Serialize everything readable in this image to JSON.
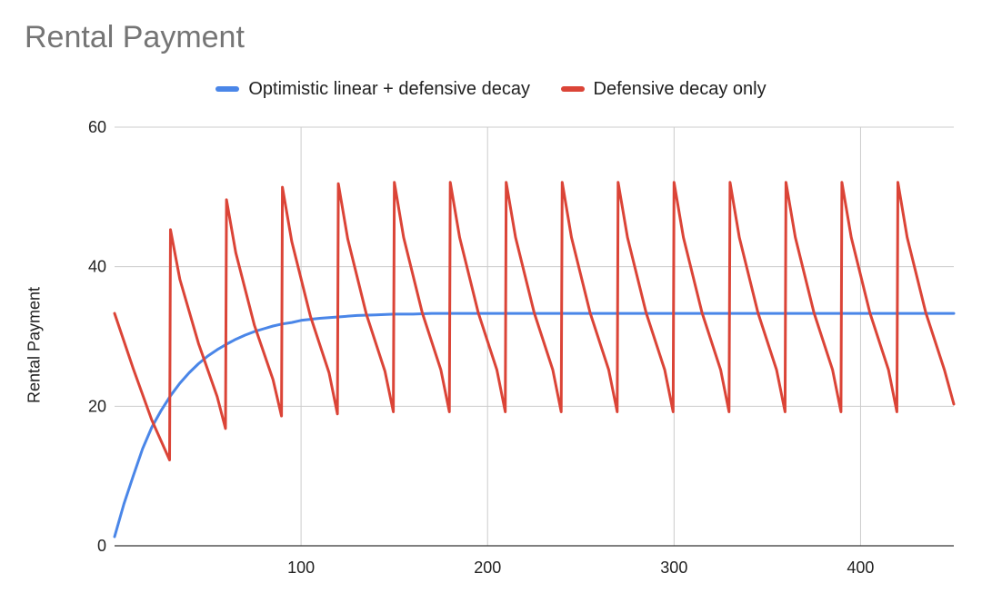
{
  "chart_data": {
    "type": "line",
    "title": "Rental Payment",
    "ylabel": "Rental Payment",
    "xlabel": "",
    "xlim": [
      0,
      450
    ],
    "ylim": [
      0,
      60
    ],
    "x_ticks": [
      100,
      200,
      300,
      400
    ],
    "y_ticks": [
      0,
      20,
      40,
      60
    ],
    "grid": true,
    "legend_position": "top",
    "series": [
      {
        "name": "Optimistic linear + defensive decay",
        "color": "#4a86e8",
        "x": [
          0,
          5,
          10,
          15,
          20,
          25,
          30,
          35,
          40,
          45,
          50,
          55,
          60,
          65,
          70,
          75,
          80,
          85,
          90,
          95,
          100,
          110,
          120,
          130,
          140,
          150,
          160,
          170,
          180,
          190,
          200,
          220,
          240,
          260,
          280,
          300,
          320,
          340,
          360,
          380,
          400,
          420,
          440,
          450
        ],
        "y": [
          1.3,
          6.0,
          10.0,
          13.9,
          17.0,
          19.4,
          21.5,
          23.3,
          24.8,
          26.1,
          27.2,
          28.1,
          28.9,
          29.6,
          30.2,
          30.7,
          31.1,
          31.5,
          31.8,
          32.0,
          32.3,
          32.6,
          32.8,
          33.0,
          33.1,
          33.2,
          33.2,
          33.3,
          33.3,
          33.3,
          33.3,
          33.3,
          33.3,
          33.3,
          33.3,
          33.3,
          33.3,
          33.3,
          33.3,
          33.3,
          33.3,
          33.3,
          33.3,
          33.3
        ]
      },
      {
        "name": "Defensive decay only",
        "color": "#db4437",
        "x": [
          0,
          10,
          20,
          29.5,
          30,
          35,
          45,
          55,
          59.5,
          60,
          65,
          75,
          85,
          89.5,
          90,
          95,
          105,
          115,
          119.5,
          120,
          125,
          135,
          145,
          149.5,
          150,
          155,
          165,
          175,
          179.5,
          180,
          185,
          195,
          205,
          209.5,
          210,
          215,
          225,
          235,
          239.5,
          240,
          245,
          255,
          265,
          269.5,
          270,
          275,
          285,
          295,
          299.5,
          300,
          305,
          315,
          325,
          329.5,
          330,
          335,
          345,
          355,
          359.5,
          360,
          365,
          375,
          385,
          389.5,
          390,
          395,
          405,
          415,
          419.5,
          420,
          425,
          435,
          445,
          450
        ],
        "y": [
          33.3,
          25.4,
          18.0,
          12.3,
          45.3,
          38.2,
          29.0,
          21.4,
          16.8,
          49.6,
          42.0,
          31.6,
          23.8,
          18.6,
          51.4,
          43.6,
          32.9,
          24.8,
          18.9,
          51.9,
          44.0,
          33.2,
          25.0,
          19.2,
          52.1,
          44.2,
          33.4,
          25.2,
          19.2,
          52.1,
          44.2,
          33.4,
          25.2,
          19.2,
          52.1,
          44.2,
          33.4,
          25.2,
          19.2,
          52.1,
          44.2,
          33.4,
          25.2,
          19.2,
          52.1,
          44.2,
          33.4,
          25.2,
          19.2,
          52.1,
          44.2,
          33.4,
          25.2,
          19.2,
          52.1,
          44.2,
          33.4,
          25.2,
          19.2,
          52.1,
          44.2,
          33.4,
          25.2,
          19.2,
          52.1,
          44.2,
          33.4,
          25.2,
          19.2,
          52.1,
          44.2,
          33.4,
          25.2,
          20.3
        ]
      }
    ]
  }
}
